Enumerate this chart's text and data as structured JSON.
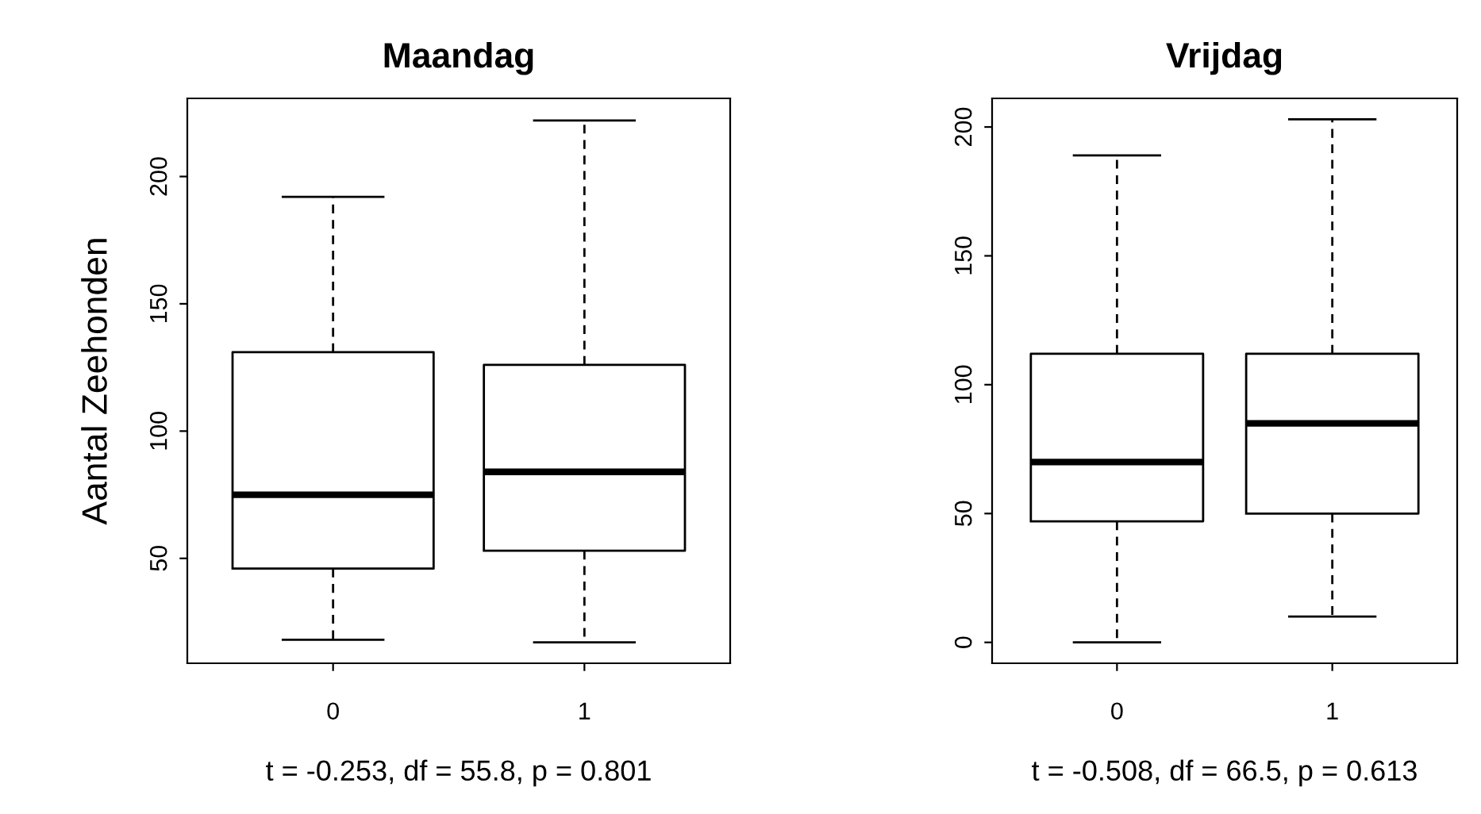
{
  "chart_data": [
    {
      "type": "box",
      "title": "Maandag",
      "ylabel": "Aantal Zeehonden",
      "xlabel": "t = -0.253, df = 55.8, p = 0.801",
      "categories": [
        "0",
        "1"
      ],
      "boxes": [
        {
          "low": 18,
          "q1": 46,
          "median": 75,
          "q3": 131,
          "high": 192
        },
        {
          "low": 17,
          "q1": 53,
          "median": 84,
          "q3": 126,
          "high": 222
        }
      ],
      "ylim": [
        8.8,
        230.7
      ],
      "yticks": [
        50,
        100,
        150,
        200
      ],
      "grid": false
    },
    {
      "type": "box",
      "title": "Vrijdag",
      "xlabel": "t = -0.508, df = 66.5, p = 0.613",
      "categories": [
        "0",
        "1"
      ],
      "boxes": [
        {
          "low": 0,
          "q1": 47,
          "median": 70,
          "q3": 112,
          "high": 189
        },
        {
          "low": 10,
          "q1": 50,
          "median": 85,
          "q3": 112,
          "high": 203
        }
      ],
      "ylim": [
        -8.1,
        211.1
      ],
      "yticks": [
        0,
        50,
        100,
        150,
        200
      ],
      "grid": false
    }
  ]
}
